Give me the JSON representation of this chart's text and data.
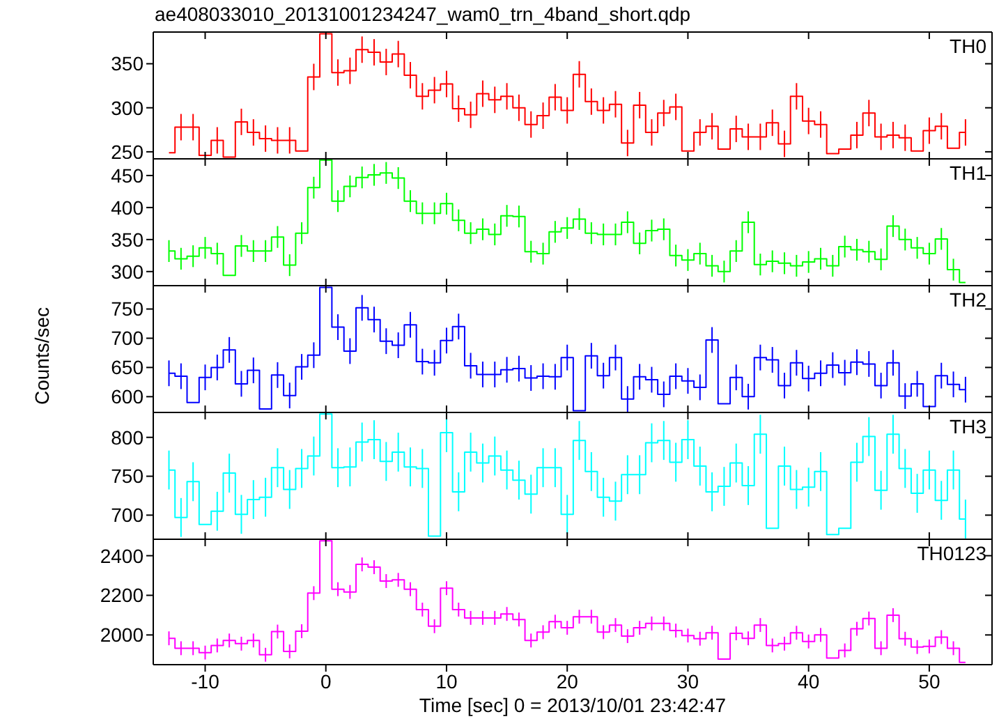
{
  "chart_data": [
    {
      "type": "step",
      "title": "ae408033010_20131001234247_wam0_trn_4band_short.qdp",
      "annotations": [
        "TH0"
      ],
      "tick_labels": "y",
      "x": [
        -13,
        -12,
        -11,
        -10,
        -9,
        -8,
        -7,
        -6,
        -5,
        -4,
        -3,
        -2,
        -1,
        0,
        1,
        2,
        3,
        4,
        5,
        6,
        7,
        8,
        9,
        10,
        11,
        12,
        13,
        14,
        15,
        16,
        17,
        18,
        19,
        20,
        21,
        22,
        23,
        24,
        25,
        26,
        27,
        28,
        29,
        30,
        31,
        32,
        33,
        34,
        35,
        36,
        37,
        38,
        39,
        40,
        41,
        42,
        43,
        44,
        45,
        46,
        47,
        48,
        49,
        50,
        51,
        52,
        53
      ],
      "xlim": [
        -14.3,
        55.2
      ],
      "xticks": [
        -10,
        0,
        10,
        20,
        30,
        40,
        50
      ],
      "ylim": [
        242,
        386
      ],
      "yticks": [
        250,
        300,
        350
      ],
      "series": [
        {
          "color": "#ff0000",
          "values": [
            249,
            278,
            278,
            246,
            263,
            244,
            284,
            272,
            265,
            263,
            263,
            251,
            335,
            384,
            340,
            342,
            366,
            363,
            352,
            361,
            337,
            313,
            320,
            327,
            299,
            292,
            316,
            309,
            313,
            300,
            281,
            291,
            312,
            297,
            338,
            307,
            297,
            304,
            260,
            303,
            272,
            294,
            301,
            251,
            272,
            279,
            253,
            276,
            267,
            267,
            283,
            259,
            313,
            285,
            281,
            248,
            253,
            269,
            294,
            267,
            269,
            266,
            251,
            274,
            279,
            254,
            272
          ],
          "errors": [
            null,
            15,
            15,
            null,
            15,
            null,
            15,
            15,
            15,
            15,
            15,
            null,
            15,
            null,
            15,
            15,
            15,
            15,
            15,
            15,
            15,
            15,
            15,
            15,
            15,
            15,
            15,
            15,
            15,
            15,
            15,
            15,
            15,
            15,
            15,
            15,
            15,
            15,
            15,
            15,
            15,
            15,
            15,
            null,
            15,
            15,
            null,
            15,
            15,
            15,
            15,
            15,
            15,
            15,
            15,
            null,
            null,
            15,
            15,
            15,
            15,
            15,
            null,
            15,
            15,
            null,
            15
          ]
        }
      ]
    },
    {
      "type": "step",
      "annotations": [
        "TH1"
      ],
      "tick_labels": "y",
      "x": [
        -13,
        -12,
        -11,
        -10,
        -9,
        -8,
        -7,
        -6,
        -5,
        -4,
        -3,
        -2,
        -1,
        0,
        1,
        2,
        3,
        4,
        5,
        6,
        7,
        8,
        9,
        10,
        11,
        12,
        13,
        14,
        15,
        16,
        17,
        18,
        19,
        20,
        21,
        22,
        23,
        24,
        25,
        26,
        27,
        28,
        29,
        30,
        31,
        32,
        33,
        34,
        35,
        36,
        37,
        38,
        39,
        40,
        41,
        42,
        43,
        44,
        45,
        46,
        47,
        48,
        49,
        50,
        51,
        52,
        53
      ],
      "xlim": [
        -14.3,
        55.2
      ],
      "xticks": [
        -10,
        0,
        10,
        20,
        30,
        40,
        50
      ],
      "ylim": [
        278,
        476
      ],
      "yticks": [
        300,
        350,
        400,
        450
      ],
      "series": [
        {
          "color": "#00ff00",
          "values": [
            332,
            320,
            324,
            337,
            328,
            294,
            340,
            332,
            332,
            354,
            310,
            360,
            431,
            474,
            410,
            433,
            447,
            451,
            454,
            446,
            410,
            391,
            391,
            406,
            380,
            360,
            366,
            358,
            387,
            386,
            331,
            328,
            362,
            368,
            382,
            360,
            358,
            358,
            377,
            344,
            364,
            366,
            325,
            318,
            328,
            309,
            300,
            332,
            377,
            311,
            316,
            313,
            309,
            315,
            320,
            309,
            339,
            334,
            331,
            319,
            371,
            350,
            337,
            328,
            351,
            303,
            283
          ],
          "errors": [
            17,
            17,
            17,
            17,
            17,
            null,
            17,
            17,
            17,
            17,
            17,
            17,
            17,
            null,
            17,
            17,
            17,
            17,
            17,
            17,
            17,
            17,
            17,
            17,
            17,
            17,
            17,
            17,
            17,
            17,
            17,
            17,
            17,
            17,
            17,
            17,
            17,
            17,
            17,
            17,
            17,
            17,
            17,
            17,
            17,
            17,
            17,
            17,
            17,
            17,
            17,
            17,
            17,
            17,
            17,
            17,
            17,
            17,
            17,
            17,
            17,
            17,
            17,
            17,
            17,
            17,
            null
          ]
        }
      ]
    },
    {
      "type": "step",
      "annotations": [
        "TH2"
      ],
      "tick_labels": "y",
      "ylabel": "Counts/sec",
      "x": [
        -13,
        -12,
        -11,
        -10,
        -9,
        -8,
        -7,
        -6,
        -5,
        -4,
        -3,
        -2,
        -1,
        0,
        1,
        2,
        3,
        4,
        5,
        6,
        7,
        8,
        9,
        10,
        11,
        12,
        13,
        14,
        15,
        16,
        17,
        18,
        19,
        20,
        21,
        22,
        23,
        24,
        25,
        26,
        27,
        28,
        29,
        30,
        31,
        32,
        33,
        34,
        35,
        36,
        37,
        38,
        39,
        40,
        41,
        42,
        43,
        44,
        45,
        46,
        47,
        48,
        49,
        50,
        51,
        52,
        53
      ],
      "xlim": [
        -14.3,
        55.2
      ],
      "xticks": [
        -10,
        0,
        10,
        20,
        30,
        40,
        50
      ],
      "ylim": [
        573,
        790
      ],
      "yticks": [
        600,
        650,
        700,
        750
      ],
      "series": [
        {
          "color": "#0000ff",
          "values": [
            640,
            635,
            590,
            633,
            650,
            680,
            622,
            645,
            579,
            637,
            602,
            651,
            671,
            787,
            719,
            678,
            752,
            732,
            695,
            688,
            723,
            660,
            658,
            696,
            720,
            653,
            638,
            638,
            646,
            648,
            632,
            635,
            634,
            667,
            576,
            670,
            636,
            667,
            596,
            634,
            629,
            604,
            635,
            627,
            616,
            697,
            588,
            633,
            600,
            667,
            663,
            619,
            658,
            631,
            640,
            654,
            641,
            659,
            656,
            619,
            658,
            601,
            622,
            583,
            636,
            621,
            612
          ],
          "errors": [
            22,
            22,
            null,
            22,
            22,
            22,
            22,
            22,
            null,
            22,
            22,
            22,
            22,
            null,
            22,
            22,
            22,
            22,
            22,
            22,
            22,
            22,
            22,
            22,
            22,
            22,
            22,
            22,
            22,
            22,
            22,
            22,
            22,
            22,
            null,
            22,
            22,
            22,
            22,
            22,
            22,
            22,
            22,
            22,
            22,
            22,
            null,
            22,
            22,
            22,
            22,
            22,
            22,
            22,
            22,
            22,
            22,
            22,
            22,
            22,
            22,
            22,
            22,
            null,
            22,
            22,
            22
          ]
        }
      ]
    },
    {
      "type": "step",
      "annotations": [
        "TH3"
      ],
      "tick_labels": "y",
      "x": [
        -13,
        -12,
        -11,
        -10,
        -9,
        -8,
        -7,
        -6,
        -5,
        -4,
        -3,
        -2,
        -1,
        0,
        1,
        2,
        3,
        4,
        5,
        6,
        7,
        8,
        9,
        10,
        11,
        12,
        13,
        14,
        15,
        16,
        17,
        18,
        19,
        20,
        21,
        22,
        23,
        24,
        25,
        26,
        27,
        28,
        29,
        30,
        31,
        32,
        33,
        34,
        35,
        36,
        37,
        38,
        39,
        40,
        41,
        42,
        43,
        44,
        45,
        46,
        47,
        48,
        49,
        50,
        51,
        52,
        53
      ],
      "xlim": [
        -14.3,
        55.2
      ],
      "xticks": [
        -10,
        0,
        10,
        20,
        30,
        40,
        50
      ],
      "ylim": [
        669,
        832
      ],
      "yticks": [
        700,
        750,
        800
      ],
      "series": [
        {
          "color": "#00ffff",
          "values": [
            758,
            697,
            743,
            688,
            705,
            754,
            701,
            720,
            723,
            761,
            733,
            760,
            776,
            830,
            761,
            762,
            794,
            797,
            769,
            781,
            762,
            760,
            673,
            806,
            730,
            781,
            767,
            776,
            758,
            745,
            727,
            761,
            761,
            701,
            796,
            756,
            723,
            718,
            752,
            752,
            793,
            796,
            768,
            797,
            763,
            730,
            737,
            767,
            738,
            804,
            683,
            763,
            733,
            736,
            756,
            675,
            683,
            768,
            801,
            732,
            804,
            760,
            728,
            758,
            719,
            758,
            695
          ],
          "errors": [
            25,
            25,
            25,
            null,
            25,
            25,
            25,
            25,
            25,
            25,
            25,
            25,
            25,
            null,
            25,
            25,
            25,
            25,
            25,
            25,
            25,
            25,
            null,
            25,
            25,
            25,
            25,
            25,
            25,
            25,
            25,
            25,
            25,
            25,
            25,
            25,
            25,
            25,
            25,
            25,
            25,
            25,
            25,
            25,
            25,
            25,
            25,
            25,
            25,
            25,
            null,
            25,
            25,
            25,
            25,
            null,
            null,
            25,
            25,
            25,
            25,
            25,
            25,
            25,
            25,
            25,
            25
          ]
        }
      ]
    },
    {
      "type": "step",
      "annotations": [
        "TH0123"
      ],
      "xlabel": "Time [sec] 0 = 2013/10/01 23:42:47",
      "x": [
        -13,
        -12,
        -11,
        -10,
        -9,
        -8,
        -7,
        -6,
        -5,
        -4,
        -3,
        -2,
        -1,
        0,
        1,
        2,
        3,
        4,
        5,
        6,
        7,
        8,
        9,
        10,
        11,
        12,
        13,
        14,
        15,
        16,
        17,
        18,
        19,
        20,
        21,
        22,
        23,
        24,
        25,
        26,
        27,
        28,
        29,
        30,
        31,
        32,
        33,
        34,
        35,
        36,
        37,
        38,
        39,
        40,
        41,
        42,
        43,
        44,
        45,
        46,
        47,
        48,
        49,
        50,
        51,
        52,
        53
      ],
      "xlim": [
        -14.3,
        55.2
      ],
      "xticks": [
        -10,
        0,
        10,
        20,
        30,
        40,
        50
      ],
      "ylim": [
        1850,
        2483
      ],
      "yticks": [
        2000,
        2200,
        2400
      ],
      "series": [
        {
          "color": "#ff00ff",
          "values": [
            1983,
            1933,
            1933,
            1911,
            1947,
            1972,
            1956,
            1972,
            1900,
            2017,
            1917,
            2019,
            2211,
            2475,
            2231,
            2217,
            2356,
            2342,
            2272,
            2278,
            2231,
            2128,
            2044,
            2236,
            2128,
            2086,
            2086,
            2086,
            2106,
            2078,
            1972,
            2014,
            2067,
            2036,
            2092,
            2092,
            2014,
            2050,
            1994,
            2036,
            2058,
            2058,
            2022,
            1997,
            1981,
            2011,
            1878,
            2008,
            1983,
            2050,
            1947,
            1956,
            2011,
            1967,
            2000,
            1883,
            1922,
            2031,
            2083,
            1933,
            2100,
            1981,
            1939,
            1942,
            1989,
            1933,
            1861
          ],
          "errors": [
            35,
            35,
            35,
            35,
            35,
            35,
            35,
            35,
            35,
            35,
            35,
            35,
            35,
            null,
            35,
            35,
            35,
            35,
            35,
            35,
            35,
            35,
            35,
            35,
            35,
            35,
            35,
            35,
            35,
            35,
            35,
            35,
            35,
            35,
            35,
            35,
            35,
            35,
            35,
            35,
            35,
            35,
            35,
            35,
            35,
            35,
            null,
            35,
            35,
            35,
            35,
            35,
            35,
            35,
            35,
            null,
            35,
            35,
            35,
            35,
            35,
            35,
            35,
            35,
            35,
            35,
            null
          ]
        }
      ]
    }
  ]
}
